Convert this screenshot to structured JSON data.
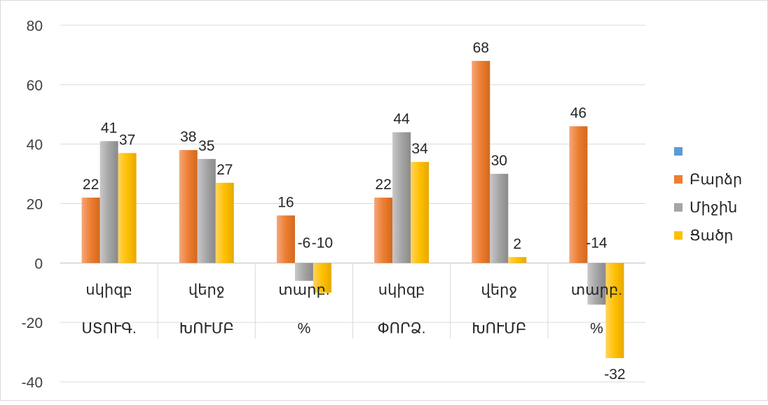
{
  "chart_data": {
    "type": "bar",
    "title": "",
    "xlabel": "",
    "ylabel": "",
    "ylim": [
      -40,
      80
    ],
    "yticks": [
      80,
      60,
      40,
      20,
      0,
      -20,
      -40
    ],
    "grid": true,
    "legend_position": "right",
    "categories": [
      [
        "սկիզբ",
        "ՍՏՈՒԳ."
      ],
      [
        "վերջ",
        "ԽՈՒՄԲ"
      ],
      [
        "տարբ.",
        "%"
      ],
      [
        "սկիզբ",
        "ՓՈՐՁ."
      ],
      [
        "վերջ",
        "ԽՈՒՄԲ"
      ],
      [
        "տարբ.",
        "%"
      ]
    ],
    "legend": [
      {
        "name": "",
        "color": "#5b9bd5"
      },
      {
        "name": "Բարձր",
        "color": "#ed7d31"
      },
      {
        "name": "Միջին",
        "color": "#a5a5a5"
      },
      {
        "name": "Ցածր",
        "color": "#ffc000"
      }
    ],
    "series": [
      {
        "name": "Բարձր",
        "color": "#ed7d31",
        "values": [
          22,
          38,
          16,
          22,
          68,
          46
        ]
      },
      {
        "name": "Միջին",
        "color": "#a5a5a5",
        "values": [
          41,
          35,
          -6,
          44,
          30,
          -14
        ]
      },
      {
        "name": "Ցածր",
        "color": "#ffc000",
        "values": [
          37,
          27,
          -10,
          34,
          2,
          -32
        ]
      }
    ]
  }
}
